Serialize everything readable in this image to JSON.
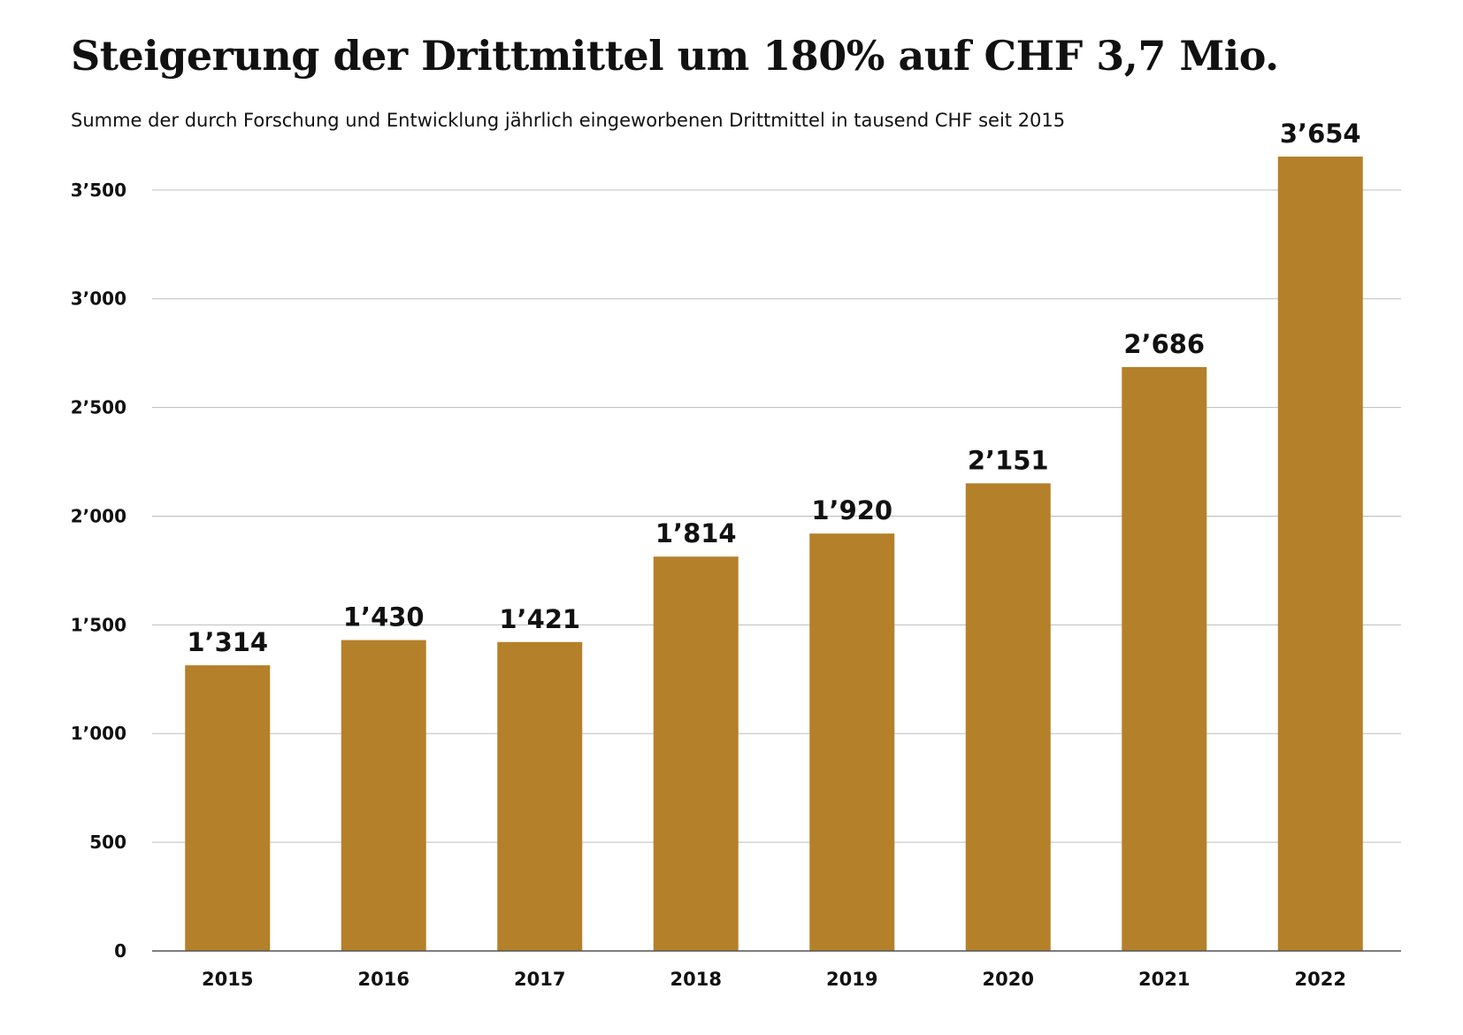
{
  "chart_data": {
    "type": "bar",
    "title": "Steigerung der Drittmittel um 180% auf CHF 3,7 Mio.",
    "subtitle": "Summe der durch Forschung und Entwicklung jährlich eingeworbenen Drittmittel in tausend CHF seit 2015",
    "xlabel": "",
    "ylabel": "",
    "categories": [
      "2015",
      "2016",
      "2017",
      "2018",
      "2019",
      "2020",
      "2021",
      "2022"
    ],
    "values": [
      1314,
      1430,
      1421,
      1814,
      1920,
      2151,
      2686,
      3654
    ],
    "value_labels": [
      "1’314",
      "1’430",
      "1’421",
      "1’814",
      "1’920",
      "2’151",
      "2’686",
      "3’654"
    ],
    "ylim": [
      0,
      3654
    ],
    "yticks": [
      0,
      500,
      1000,
      1500,
      2000,
      2500,
      3000,
      3500
    ],
    "ytick_labels": [
      "0",
      "500",
      "1’000",
      "1’500",
      "2’000",
      "2’500",
      "3’000",
      "3’500"
    ],
    "grid": true,
    "legend": "none",
    "colors": {
      "bar": "#b5802a",
      "grid": "#bdbdbd",
      "axis": "#555555"
    }
  }
}
